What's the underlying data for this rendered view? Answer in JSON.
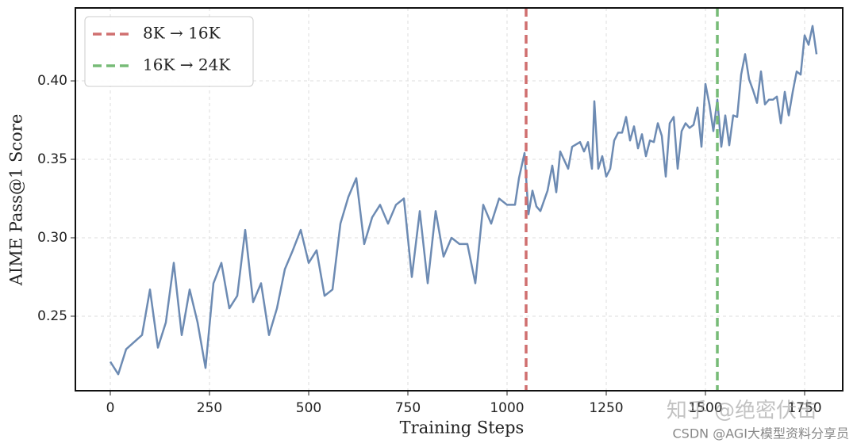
{
  "chart_data": {
    "type": "line",
    "xlabel": "Training Steps",
    "ylabel": "AIME Pass@1 Score",
    "x": [
      0,
      20,
      40,
      80,
      100,
      120,
      140,
      160,
      180,
      200,
      220,
      240,
      260,
      280,
      300,
      320,
      340,
      360,
      380,
      400,
      420,
      440,
      460,
      480,
      500,
      520,
      540,
      560,
      580,
      600,
      620,
      640,
      660,
      680,
      700,
      720,
      740,
      760,
      780,
      800,
      820,
      840,
      860,
      880,
      900,
      920,
      940,
      960,
      980,
      1000,
      1020,
      1030,
      1044,
      1054,
      1064,
      1074,
      1084,
      1102,
      1114,
      1124,
      1134,
      1154,
      1164,
      1184,
      1194,
      1204,
      1214,
      1220,
      1230,
      1240,
      1250,
      1260,
      1270,
      1280,
      1290,
      1300,
      1310,
      1320,
      1330,
      1340,
      1350,
      1360,
      1370,
      1380,
      1390,
      1400,
      1410,
      1420,
      1430,
      1440,
      1450,
      1460,
      1470,
      1480,
      1490,
      1500,
      1510,
      1520,
      1530,
      1540,
      1550,
      1560,
      1570,
      1580,
      1590,
      1600,
      1610,
      1620,
      1630,
      1640,
      1650,
      1660,
      1670,
      1680,
      1690,
      1700,
      1710,
      1720,
      1730,
      1740,
      1750,
      1760,
      1770,
      1780
    ],
    "series": [
      {
        "color": "#6d8bb3",
        "values": [
          0.221,
          0.213,
          0.229,
          0.238,
          0.267,
          0.23,
          0.246,
          0.284,
          0.238,
          0.267,
          0.246,
          0.217,
          0.271,
          0.284,
          0.255,
          0.263,
          0.305,
          0.259,
          0.271,
          0.238,
          0.255,
          0.28,
          0.292,
          0.305,
          0.284,
          0.292,
          0.263,
          0.267,
          0.309,
          0.326,
          0.338,
          0.296,
          0.313,
          0.321,
          0.309,
          0.321,
          0.325,
          0.275,
          0.317,
          0.271,
          0.317,
          0.288,
          0.3,
          0.296,
          0.296,
          0.271,
          0.321,
          0.309,
          0.325,
          0.321,
          0.321,
          0.338,
          0.354,
          0.315,
          0.33,
          0.32,
          0.317,
          0.33,
          0.346,
          0.329,
          0.355,
          0.344,
          0.358,
          0.361,
          0.355,
          0.361,
          0.344,
          0.387,
          0.344,
          0.352,
          0.339,
          0.344,
          0.362,
          0.367,
          0.367,
          0.377,
          0.362,
          0.371,
          0.357,
          0.366,
          0.352,
          0.362,
          0.361,
          0.373,
          0.365,
          0.339,
          0.373,
          0.377,
          0.344,
          0.368,
          0.373,
          0.37,
          0.372,
          0.383,
          0.358,
          0.398,
          0.385,
          0.368,
          0.388,
          0.358,
          0.378,
          0.359,
          0.378,
          0.377,
          0.404,
          0.417,
          0.401,
          0.394,
          0.386,
          0.406,
          0.385,
          0.388,
          0.388,
          0.39,
          0.373,
          0.393,
          0.378,
          0.393,
          0.406,
          0.404,
          0.429,
          0.423,
          0.435,
          0.417
        ]
      }
    ],
    "vlines": [
      {
        "name": "8K → 16K",
        "x": 1048,
        "color": "#d07070"
      },
      {
        "name": "16K → 24K",
        "x": 1530,
        "color": "#77bb77"
      }
    ],
    "xlim": [
      -88,
      1846
    ],
    "ylim": [
      0.2025,
      0.4465
    ],
    "xticks": [
      0,
      250,
      500,
      750,
      1000,
      1250,
      1500,
      1750
    ],
    "yticks": [
      {
        "value": 0.25,
        "label": "0.25"
      },
      {
        "value": 0.3,
        "label": "0.30"
      },
      {
        "value": 0.35,
        "label": "0.35"
      },
      {
        "value": 0.4,
        "label": "0.40"
      }
    ],
    "grid": true,
    "legend": "upper left",
    "watermarks": [
      "知乎 @绝密伏击",
      "CSDN @AGI大模型资料分享员"
    ]
  }
}
